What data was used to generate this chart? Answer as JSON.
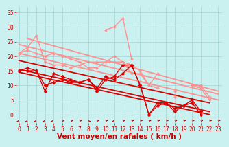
{
  "bg_color": "#caf0f0",
  "grid_color": "#aad8d8",
  "xlabel": "Vent moyen/en rafales ( km/h )",
  "xlabel_color": "#cc0000",
  "xlabel_fontsize": 7.5,
  "yticks": [
    0,
    5,
    10,
    15,
    20,
    25,
    30,
    35
  ],
  "xticks": [
    0,
    1,
    2,
    3,
    4,
    5,
    6,
    7,
    8,
    9,
    10,
    11,
    12,
    13,
    14,
    15,
    16,
    17,
    18,
    19,
    20,
    21,
    22,
    23
  ],
  "tick_color": "#cc0000",
  "tick_fontsize": 5.5,
  "ylim": [
    -3,
    37
  ],
  "xlim": [
    -0.3,
    23.5
  ],
  "lines_red_jagged": [
    {
      "x": [
        0,
        1,
        2,
        3,
        4,
        5,
        6,
        7,
        8,
        9,
        10,
        11,
        12,
        13,
        14,
        15,
        16,
        17,
        18,
        19,
        20,
        21,
        22,
        23
      ],
      "y": [
        15,
        15,
        15,
        8,
        14,
        13,
        12,
        11,
        12,
        8,
        12,
        13,
        17,
        17,
        10,
        0,
        3,
        4,
        1,
        3,
        4,
        0,
        null,
        null
      ],
      "color": "#dd0000",
      "lw": 1.0
    },
    {
      "x": [
        0,
        1,
        2,
        3,
        4,
        5,
        6,
        7,
        8,
        9,
        10,
        11,
        12,
        13,
        14,
        15,
        16,
        17,
        18,
        19,
        20,
        21,
        22,
        23
      ],
      "y": [
        15,
        16,
        15,
        10,
        11,
        12,
        11,
        11,
        12,
        9,
        13,
        12,
        14,
        17,
        10,
        0,
        4,
        4,
        2,
        3,
        5,
        1,
        null,
        null
      ],
      "color": "#dd0000",
      "lw": 1.0
    }
  ],
  "lines_red_diagonal": [
    {
      "x": [
        0,
        22
      ],
      "y": [
        14.5,
        0
      ],
      "color": "#dd0000",
      "lw": 1.3
    },
    {
      "x": [
        0,
        22
      ],
      "y": [
        15.5,
        1
      ],
      "color": "#dd0000",
      "lw": 1.3
    },
    {
      "x": [
        0,
        22
      ],
      "y": [
        18.5,
        4
      ],
      "color": "#dd0000",
      "lw": 1.3
    }
  ],
  "lines_pink": [
    {
      "x": [
        0,
        1,
        2,
        3,
        4,
        5,
        6,
        7,
        8,
        9,
        10,
        11,
        12,
        13,
        14,
        15,
        16,
        17,
        18,
        19,
        20,
        21,
        22,
        23
      ],
      "y": [
        21,
        23,
        27,
        18,
        17,
        17,
        16,
        17,
        18,
        18,
        18,
        18,
        18,
        14,
        14,
        10,
        14,
        null,
        6,
        null,
        10,
        10,
        6,
        null
      ],
      "color": "#ff9090",
      "lw": 1.0
    },
    {
      "x": [
        0,
        1,
        2,
        3,
        4,
        5,
        6,
        7,
        8,
        9,
        10,
        11,
        12,
        13,
        14,
        15,
        16,
        17,
        18,
        19,
        20,
        21,
        22,
        23
      ],
      "y": [
        21,
        22,
        21,
        20,
        21,
        20,
        19,
        18,
        16,
        16,
        18,
        20,
        18,
        17,
        15,
        10,
        9,
        null,
        8,
        null,
        10,
        9,
        5,
        null
      ],
      "color": "#ff9090",
      "lw": 1.0
    },
    {
      "x": [
        10,
        11,
        12,
        13
      ],
      "y": [
        29,
        30,
        33,
        19
      ],
      "color": "#ff9090",
      "lw": 1.0
    }
  ],
  "lines_pink_diagonal": [
    {
      "x": [
        0,
        23
      ],
      "y": [
        21,
        5
      ],
      "color": "#ff9090",
      "lw": 1.3
    },
    {
      "x": [
        0,
        23
      ],
      "y": [
        24,
        7
      ],
      "color": "#ff9090",
      "lw": 1.3
    },
    {
      "x": [
        1,
        23
      ],
      "y": [
        26,
        8
      ],
      "color": "#ff9090",
      "lw": 1.3
    }
  ],
  "arrows": {
    "x": [
      0,
      1,
      2,
      3,
      4,
      5,
      6,
      7,
      8,
      9,
      10,
      11,
      12,
      13,
      14,
      15,
      16,
      17,
      18,
      19,
      20,
      21,
      22,
      23
    ],
    "angles_deg": [
      225,
      225,
      225,
      225,
      210,
      45,
      45,
      45,
      315,
      45,
      45,
      225,
      45,
      45,
      45,
      45,
      45,
      45,
      45,
      45,
      45,
      45,
      45,
      45
    ],
    "color": "#cc0000",
    "y": -2.2
  }
}
